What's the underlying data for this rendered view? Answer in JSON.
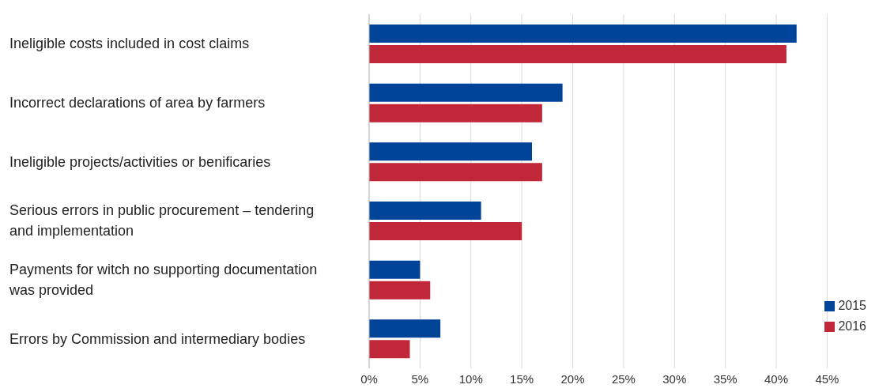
{
  "chart_data": {
    "type": "bar",
    "orientation": "horizontal",
    "categories": [
      "Ineligible costs included in cost claims",
      "Incorrect declarations of area by farmers",
      "Ineligible projects/activities or benificaries",
      "Serious errors in public procurement – tendering and implementation",
      "Payments for witch no supporting documentation was provided",
      "Errors by Commission and intermediary bodies"
    ],
    "series": [
      {
        "name": "2015",
        "color": "#00449a",
        "values": [
          42,
          19,
          16,
          11,
          5,
          7
        ]
      },
      {
        "name": "2016",
        "color": "#c0283a",
        "values": [
          41,
          17,
          17,
          15,
          6,
          4
        ]
      }
    ],
    "xlim": [
      0,
      45
    ],
    "xticks": [
      {
        "value": 0,
        "label": "0%"
      },
      {
        "value": 5,
        "label": "5%"
      },
      {
        "value": 10,
        "label": "10%"
      },
      {
        "value": 15,
        "label": "15%"
      },
      {
        "value": 20,
        "label": "20%"
      },
      {
        "value": 25,
        "label": "25%"
      },
      {
        "value": 30,
        "label": "30%"
      },
      {
        "value": 35,
        "label": "35%"
      },
      {
        "value": 40,
        "label": "40%"
      },
      {
        "value": 45,
        "label": "45%"
      }
    ],
    "grid": "x",
    "legend": "bottom right"
  }
}
